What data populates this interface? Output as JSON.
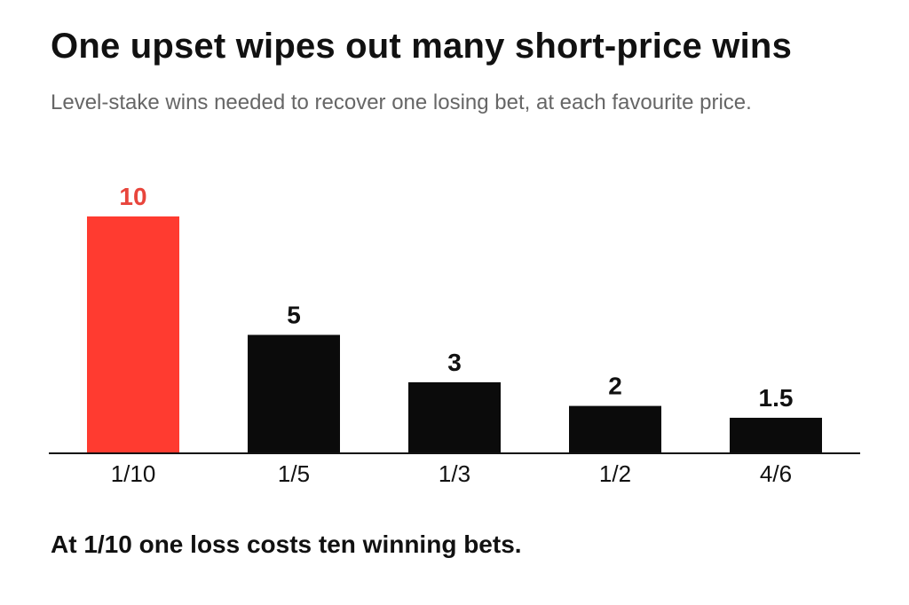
{
  "header": {
    "title": "One upset wipes out many short-price wins",
    "subtitle": "Level-stake wins needed to recover one losing bet, at each favourite price."
  },
  "footnote": "At 1/10 one loss costs ten winning bets.",
  "colors": {
    "highlight": "#ff3b30",
    "bar": "#0b0b0b",
    "highlight_label": "#e8453c",
    "label": "#111111",
    "axis": "#111111"
  },
  "chart_data": {
    "type": "bar",
    "title": "One upset wipes out many short-price wins",
    "subtitle": "Level-stake wins needed to recover one losing bet, at each favourite price.",
    "categories": [
      "1/10",
      "1/5",
      "1/3",
      "1/2",
      "4/6"
    ],
    "values": [
      10,
      5,
      3,
      2,
      1.5
    ],
    "data_labels": [
      "10",
      "5",
      "3",
      "2",
      "1.5"
    ],
    "highlight_category": "1/10",
    "xlabel": "",
    "ylabel": "",
    "ylim": [
      0,
      10
    ],
    "grid": false,
    "legend": "none"
  }
}
